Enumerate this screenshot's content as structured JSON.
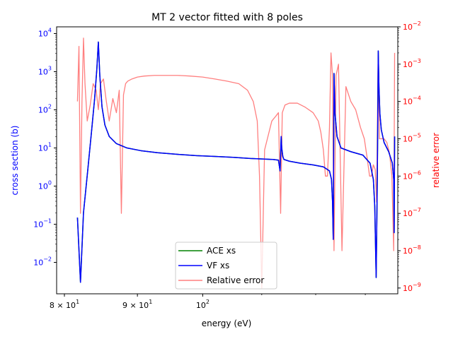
{
  "chart_data": {
    "type": "line",
    "title": "MT 2 vector fitted with 8 poles",
    "xlabel": "energy (eV)",
    "ylabel": "cross section (b)",
    "ylabel_right": "relative error",
    "x_scale": "log",
    "y_scale": "log",
    "y2_scale": "log",
    "xlim": [
      79,
      137
    ],
    "ylim": [
      0.0015,
      15000
    ],
    "y2lim": [
      7e-10,
      0.01
    ],
    "grid": false,
    "legend_position": "lower center",
    "x_tick_labels": [
      {
        "value": 80,
        "base": "8",
        "exp": "1"
      },
      {
        "value": 90,
        "base": "9",
        "exp": "1"
      },
      {
        "value": 100,
        "base": "10",
        "exp": "2"
      }
    ],
    "y_tick_labels": [
      {
        "value": 0.01,
        "exp": "−2"
      },
      {
        "value": 0.1,
        "exp": "−1"
      },
      {
        "value": 1,
        "exp": "0"
      },
      {
        "value": 10,
        "exp": "1"
      },
      {
        "value": 100,
        "exp": "2"
      },
      {
        "value": 1000,
        "exp": "3"
      },
      {
        "value": 10000,
        "exp": "4"
      }
    ],
    "y2_tick_labels": [
      {
        "value": 1e-09,
        "exp": "−9"
      },
      {
        "value": 1e-08,
        "exp": "−8"
      },
      {
        "value": 1e-07,
        "exp": "−7"
      },
      {
        "value": 1e-06,
        "exp": "−6"
      },
      {
        "value": 1e-05,
        "exp": "−5"
      },
      {
        "value": 0.0001,
        "exp": "−4"
      },
      {
        "value": 0.001,
        "exp": "−3"
      },
      {
        "value": 0.01,
        "exp": "−2"
      }
    ],
    "series": [
      {
        "name": "ACE xs",
        "color": "#008000",
        "axis": "left",
        "x": [
          81.7,
          82.1,
          82.5,
          83.1,
          83.6,
          84.0,
          84.3,
          84.5,
          84.7,
          85.0,
          85.4,
          86.0,
          87.0,
          88.5,
          90.5,
          93.0,
          96.0,
          99.0,
          102.0,
          105.0,
          108.0,
          110.5,
          112.0,
          113.0,
          113.3,
          113.5,
          113.6,
          113.8,
          114.0,
          115.0,
          117.0,
          119.5,
          121.5,
          122.7,
          123.1,
          123.3,
          123.45,
          123.6,
          123.8,
          124.2,
          125.0,
          127.0,
          129.5,
          131.0,
          131.7,
          132.0,
          132.3,
          132.5,
          132.6,
          132.75,
          132.9,
          133.1,
          133.4,
          134.0,
          135.0,
          135.8,
          136.1,
          136.2,
          136.3
        ],
        "y": [
          0.15,
          0.003,
          0.2,
          3,
          30,
          200,
          1200,
          6000,
          800,
          120,
          40,
          20,
          13,
          10,
          8.5,
          7.5,
          6.8,
          6.3,
          6.0,
          5.7,
          5.3,
          5.1,
          5.0,
          4.8,
          2.5,
          20,
          10,
          6,
          5,
          4.5,
          4,
          3.6,
          3.2,
          2.5,
          1.5,
          0.4,
          0.04,
          900,
          80,
          20,
          10,
          8,
          6.5,
          4,
          1.5,
          0.3,
          0.004,
          0.5,
          10,
          3500,
          400,
          80,
          30,
          14,
          8,
          4,
          1.5,
          0.06,
          20
        ]
      },
      {
        "name": "VF xs",
        "color": "#0000ff",
        "axis": "left",
        "x": [
          81.7,
          82.1,
          82.5,
          83.1,
          83.6,
          84.0,
          84.3,
          84.5,
          84.7,
          85.0,
          85.4,
          86.0,
          87.0,
          88.5,
          90.5,
          93.0,
          96.0,
          99.0,
          102.0,
          105.0,
          108.0,
          110.5,
          112.0,
          113.0,
          113.3,
          113.5,
          113.6,
          113.8,
          114.0,
          115.0,
          117.0,
          119.5,
          121.5,
          122.7,
          123.1,
          123.3,
          123.45,
          123.6,
          123.8,
          124.2,
          125.0,
          127.0,
          129.5,
          131.0,
          131.7,
          132.0,
          132.3,
          132.5,
          132.6,
          132.75,
          132.9,
          133.1,
          133.4,
          134.0,
          135.0,
          135.8,
          136.1,
          136.2,
          136.3
        ],
        "y": [
          0.15,
          0.003,
          0.2,
          3,
          30,
          200,
          1200,
          6000,
          800,
          120,
          40,
          20,
          13,
          10,
          8.5,
          7.5,
          6.8,
          6.3,
          6.0,
          5.7,
          5.3,
          5.1,
          5.0,
          4.8,
          2.5,
          20,
          10,
          6,
          5,
          4.5,
          4,
          3.6,
          3.2,
          2.5,
          1.5,
          0.4,
          0.04,
          900,
          80,
          20,
          10,
          8,
          6.5,
          4,
          1.5,
          0.3,
          0.004,
          0.5,
          10,
          3500,
          400,
          80,
          30,
          14,
          8,
          4,
          1.5,
          0.06,
          20
        ]
      },
      {
        "name": "Relative error",
        "color": "#ff0000",
        "opacity": 0.5,
        "axis": "right",
        "x": [
          81.7,
          81.9,
          82.1,
          82.3,
          82.5,
          82.7,
          83.0,
          83.4,
          83.8,
          84.2,
          84.5,
          84.8,
          85.2,
          85.6,
          86.0,
          86.5,
          87.0,
          87.4,
          87.7,
          88.0,
          88.3,
          88.6,
          89.2,
          90.0,
          91.0,
          92.5,
          94.0,
          96.0,
          98.0,
          100.0,
          102.0,
          104.0,
          106.0,
          107.5,
          108.5,
          109.2,
          109.6,
          110.0,
          110.5,
          111.0,
          111.8,
          112.5,
          113.0,
          113.4,
          113.7,
          114.2,
          115.0,
          116.5,
          118.0,
          119.5,
          120.5,
          121.0,
          121.5,
          121.9,
          122.3,
          122.7,
          123.0,
          123.3,
          123.6,
          124.0,
          124.5,
          125.2,
          126.0,
          127.0,
          128.0,
          129.0,
          129.8,
          130.4,
          130.9,
          131.3,
          131.7,
          132.1,
          132.4,
          132.7,
          133.0,
          133.5,
          134.0,
          134.6,
          135.2,
          135.7,
          136.1,
          136.3
        ],
        "y": [
          0.0001,
          0.003,
          1e-07,
          0.0001,
          0.005,
          0.0003,
          3e-05,
          8e-05,
          0.0003,
          0.0002,
          6e-05,
          0.0003,
          0.0004,
          0.0001,
          3e-05,
          0.00012,
          5e-05,
          0.0002,
          1e-07,
          0.00015,
          0.0003,
          0.00035,
          0.0004,
          0.00045,
          0.00048,
          0.0005,
          0.0005,
          0.0005,
          0.00048,
          0.00045,
          0.0004,
          0.00035,
          0.0003,
          0.0002,
          0.0001,
          3e-05,
          1e-06,
          1e-09,
          5e-06,
          1e-05,
          3e-05,
          4e-05,
          5e-05,
          1e-07,
          5e-05,
          8e-05,
          9e-05,
          9e-05,
          7e-05,
          5e-05,
          3e-05,
          1.5e-05,
          5e-06,
          1e-06,
          1e-06,
          2e-05,
          0.002,
          0.0005,
          1e-08,
          0.0005,
          0.001,
          1e-08,
          0.00025,
          0.0001,
          6e-05,
          2e-05,
          1e-05,
          3e-06,
          1e-06,
          1e-06,
          2e-06,
          1.5e-06,
          2e-07,
          0.001,
          1e-05,
          1e-05,
          1e-05,
          8e-06,
          4e-06,
          1e-06,
          1e-08,
          0.002
        ]
      }
    ]
  }
}
